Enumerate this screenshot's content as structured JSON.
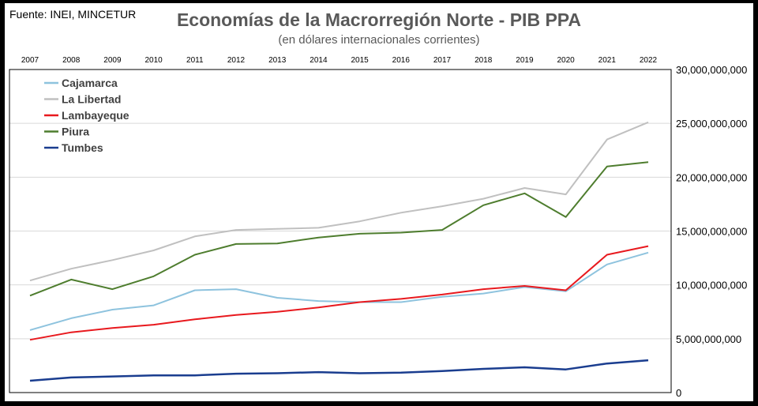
{
  "source": "Fuente: INEI, MINCETUR",
  "chart_data": {
    "type": "line",
    "title": "Economías de la Macrorregión Norte - PIB PPA",
    "subtitle": "(en dólares internacionales corrientes)",
    "x": [
      "2007",
      "2008",
      "2009",
      "2010",
      "2011",
      "2012",
      "2013",
      "2014",
      "2015",
      "2016",
      "2017",
      "2018",
      "2019",
      "2020",
      "2021",
      "2022"
    ],
    "ylim": [
      0,
      30000000000
    ],
    "yticks": [
      0,
      5000000000,
      10000000000,
      15000000000,
      20000000000,
      25000000000,
      30000000000
    ],
    "ytick_labels": [
      "0",
      "5,000,000,000",
      "10,000,000,000",
      "15,000,000,000",
      "20,000,000,000",
      "25,000,000,000",
      "30,000,000,000"
    ],
    "legend_position": "top-left",
    "grid": true,
    "series": [
      {
        "name": "Cajamarca",
        "color": "#8ec3de",
        "values": [
          5800000000,
          6900000000,
          7700000000,
          8100000000,
          9500000000,
          9600000000,
          8800000000,
          8500000000,
          8400000000,
          8400000000,
          8900000000,
          9200000000,
          9800000000,
          9400000000,
          11900000000,
          13000000000
        ]
      },
      {
        "name": "La Libertad",
        "color": "#c0c0c0",
        "values": [
          10400000000,
          11500000000,
          12300000000,
          13200000000,
          14500000000,
          15100000000,
          15200000000,
          15300000000,
          15900000000,
          16700000000,
          17300000000,
          18000000000,
          19000000000,
          18400000000,
          23500000000,
          25100000000
        ]
      },
      {
        "name": "Lambayeque",
        "color": "#e8191e",
        "values": [
          4900000000,
          5600000000,
          6000000000,
          6300000000,
          6800000000,
          7200000000,
          7500000000,
          7900000000,
          8400000000,
          8700000000,
          9100000000,
          9600000000,
          9900000000,
          9500000000,
          12800000000,
          13600000000
        ]
      },
      {
        "name": "Piura",
        "color": "#4e7d2e",
        "values": [
          9000000000,
          10500000000,
          9600000000,
          10800000000,
          12800000000,
          13800000000,
          13850000000,
          14400000000,
          14750000000,
          14850000000,
          15100000000,
          17400000000,
          18500000000,
          16300000000,
          21000000000,
          21400000000
        ]
      },
      {
        "name": "Tumbes",
        "color": "#1a3d8f",
        "values": [
          1100000000,
          1400000000,
          1500000000,
          1600000000,
          1600000000,
          1750000000,
          1800000000,
          1900000000,
          1800000000,
          1850000000,
          2000000000,
          2200000000,
          2350000000,
          2150000000,
          2700000000,
          3000000000
        ]
      }
    ]
  }
}
